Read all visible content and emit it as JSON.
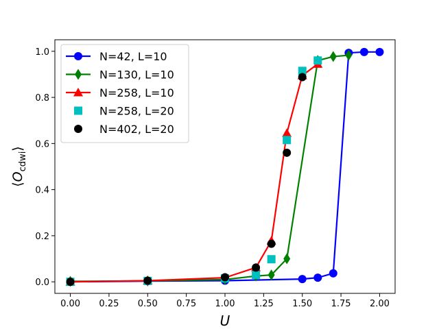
{
  "chart_data": {
    "type": "line",
    "xlabel": "U",
    "ylabel_main": "O",
    "ylabel_sub": "cdwi",
    "xlim": [
      -0.1,
      2.1
    ],
    "ylim": [
      -0.05,
      1.05
    ],
    "x_ticks": [
      0.0,
      0.25,
      0.5,
      0.75,
      1.0,
      1.25,
      1.5,
      1.75,
      2.0
    ],
    "x_tick_labels": [
      "0.00",
      "0.25",
      "0.50",
      "0.75",
      "1.00",
      "1.25",
      "1.50",
      "1.75",
      "2.00"
    ],
    "y_ticks": [
      0.0,
      0.2,
      0.4,
      0.6,
      0.8,
      1.0
    ],
    "y_tick_labels": [
      "0.0",
      "0.2",
      "0.4",
      "0.6",
      "0.8",
      "1.0"
    ],
    "grid": false,
    "legend_position": "top-left",
    "series": [
      {
        "name": "N=42, L=10",
        "color": "#0000ff",
        "marker": "circle",
        "line": true,
        "x": [
          0.0,
          0.5,
          1.0,
          1.5,
          1.6,
          1.7,
          1.8,
          1.9,
          2.0
        ],
        "y": [
          0.0,
          0.003,
          0.005,
          0.012,
          0.018,
          0.037,
          0.993,
          0.997,
          0.997
        ]
      },
      {
        "name": "N=130, L=10",
        "color": "#008000",
        "marker": "diamond",
        "line": true,
        "x": [
          0.0,
          0.5,
          1.0,
          1.2,
          1.3,
          1.4,
          1.6,
          1.7,
          1.8
        ],
        "y": [
          0.002,
          0.004,
          0.01,
          0.025,
          0.03,
          0.1,
          0.96,
          0.977,
          0.983
        ]
      },
      {
        "name": "N=258, L=10",
        "color": "#ff0000",
        "marker": "triangle",
        "line": true,
        "x": [
          0.0,
          0.5,
          1.0,
          1.2,
          1.3,
          1.4,
          1.5,
          1.6
        ],
        "y": [
          0.0,
          0.005,
          0.018,
          0.062,
          0.178,
          0.645,
          0.895,
          0.945
        ]
      },
      {
        "name": "N=258, L=20",
        "color": "#00bfbf",
        "marker": "square",
        "line": false,
        "x": [
          0.0,
          0.5,
          1.0,
          1.2,
          1.3,
          1.4,
          1.5,
          1.6
        ],
        "y": [
          0.0,
          0.004,
          0.015,
          0.03,
          0.098,
          0.615,
          0.915,
          0.96
        ]
      },
      {
        "name": "N=402, L=20",
        "color": "#000000",
        "marker": "circle",
        "line": false,
        "x": [
          0.0,
          0.5,
          1.0,
          1.2,
          1.3,
          1.4,
          1.5
        ],
        "y": [
          0.0,
          0.005,
          0.02,
          0.062,
          0.165,
          0.56,
          0.888
        ]
      }
    ]
  }
}
